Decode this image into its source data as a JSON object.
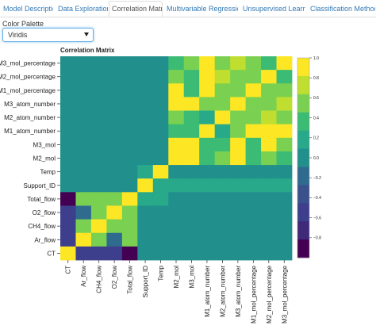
{
  "tabs": [
    {
      "label": "Model Description",
      "active": false
    },
    {
      "label": "Data Exploration",
      "active": false
    },
    {
      "label": "Correlation Matrix",
      "active": true
    },
    {
      "label": "Multivariable Regression",
      "active": false
    },
    {
      "label": "Unsupervised Learning",
      "active": false
    },
    {
      "label": "Classification Methods",
      "active": false
    }
  ],
  "palette": {
    "label": "Color Palette",
    "selected": "Viridis"
  },
  "chart_data": {
    "type": "heatmap",
    "title": "Correlation Matrix",
    "palette": "viridis",
    "x_labels": [
      "CT",
      "Ar_flow",
      "CH4_flow",
      "O2_flow",
      "Total_flow",
      "Support_ID",
      "Temp",
      "M2_mol",
      "M3_mol",
      "M1_atom_number",
      "M2_atom_number",
      "M3_atom_number",
      "M1_mol_percentage",
      "M2_mol_percentage",
      "M3_mol_percentage"
    ],
    "y_labels": [
      "M3_mol_percentage",
      "M2_mol_percentage",
      "M1_mol_percentage",
      "M3_atom_number",
      "M2_atom_number",
      "M1_atom_number",
      "M3_mol",
      "M2_mol",
      "Temp",
      "Support_ID",
      "Total_flow",
      "O2_flow",
      "CH4_flow",
      "Ar_flow",
      "CT"
    ],
    "values": [
      [
        0,
        0,
        0,
        0,
        0,
        0,
        0,
        0.5,
        0.6,
        1,
        0.6,
        0.8,
        0.6,
        0.5,
        1
      ],
      [
        0,
        0,
        0,
        0,
        0,
        0,
        0,
        0.6,
        0.5,
        1,
        0.8,
        0.6,
        0.6,
        1,
        0.5
      ],
      [
        0,
        0,
        0,
        0,
        0,
        0,
        0,
        1,
        0.5,
        1,
        0.6,
        0.6,
        1,
        0.6,
        0.6
      ],
      [
        0,
        0,
        0,
        0,
        0,
        0,
        0,
        1,
        1,
        0.6,
        0.6,
        1,
        0.6,
        0.6,
        0.8
      ],
      [
        0,
        0,
        0,
        0,
        0,
        0,
        0,
        0.6,
        0.5,
        0.3,
        1,
        0.6,
        0.6,
        0.8,
        0.6
      ],
      [
        0,
        0,
        0,
        0,
        0,
        0,
        0,
        0.5,
        0.5,
        1,
        0.3,
        0.6,
        1,
        1,
        1
      ],
      [
        0,
        0,
        0,
        0,
        0,
        0,
        0,
        1,
        1,
        0.5,
        0.5,
        1,
        0.5,
        1,
        0.6
      ],
      [
        0,
        0,
        0,
        0,
        0,
        0,
        0,
        1,
        1,
        0.5,
        0.6,
        1,
        0.5,
        0.6,
        0.5
      ],
      [
        0,
        0,
        0,
        0,
        0,
        0.2,
        1,
        0,
        0,
        0,
        0,
        0,
        0,
        0,
        0
      ],
      [
        0,
        0,
        0,
        0,
        0,
        1,
        0.2,
        0.2,
        0.2,
        0.2,
        0.2,
        0.2,
        0.2,
        0.2,
        0.2
      ],
      [
        -1,
        0.6,
        0.6,
        0.6,
        1,
        0.2,
        0.2,
        0,
        0,
        0,
        0,
        0,
        0,
        0,
        0
      ],
      [
        -0.5,
        -0.2,
        0.6,
        1,
        0.6,
        0,
        0,
        0,
        0,
        0,
        0,
        0,
        0,
        0,
        0
      ],
      [
        -0.6,
        0.6,
        1,
        0.6,
        0.6,
        0,
        0,
        0,
        0,
        0,
        0,
        0,
        0,
        0,
        0
      ],
      [
        -0.6,
        1,
        0.6,
        -0.2,
        0.6,
        0,
        0,
        0,
        0,
        0,
        0,
        0,
        0,
        0,
        0
      ],
      [
        1,
        -0.6,
        -0.6,
        -0.6,
        -1,
        0,
        0,
        0,
        0,
        0,
        0,
        0,
        0,
        0,
        0
      ]
    ],
    "colorbar": {
      "range": [
        -1,
        1
      ],
      "ticks": [
        "1.0",
        "0.8",
        "0.6",
        "0.4",
        "0.2",
        "0.0",
        "−0.2",
        "−0.4",
        "−0.6",
        "−0.8"
      ]
    },
    "legend_placement": "right"
  }
}
